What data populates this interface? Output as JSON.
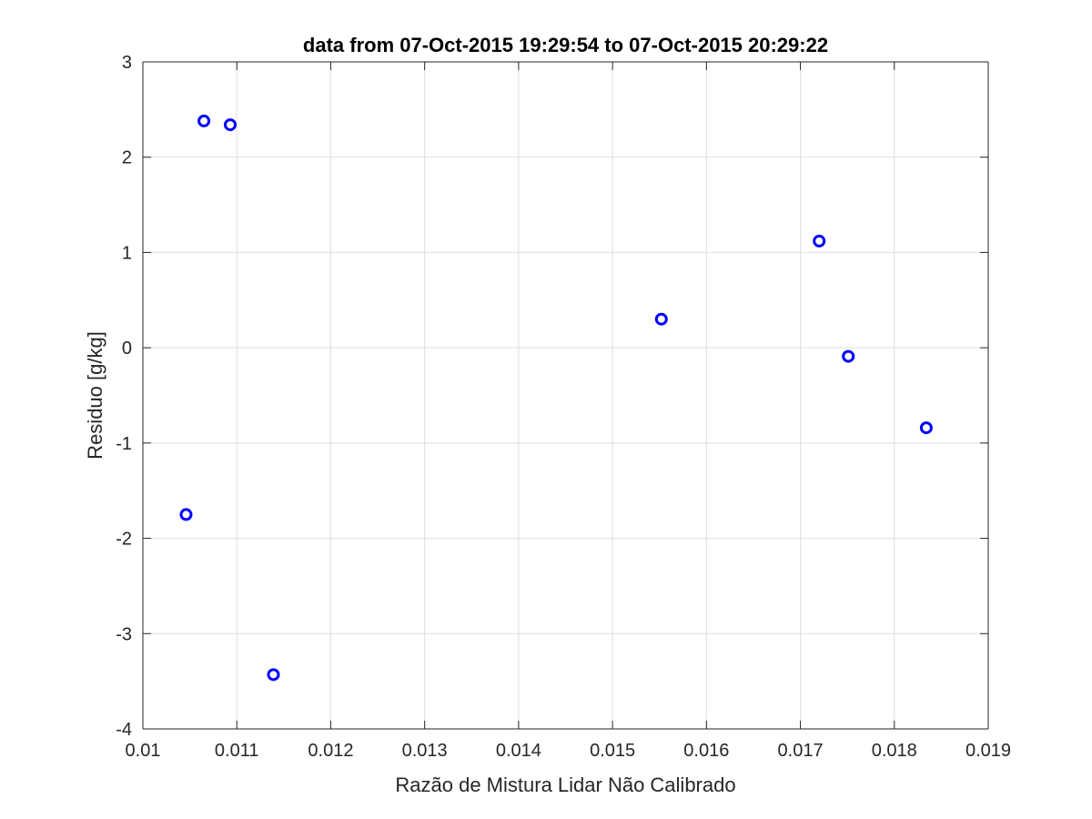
{
  "chart_data": {
    "type": "scatter",
    "title": "data from 07-Oct-2015 19:29:54 to 07-Oct-2015 20:29:22",
    "xlabel": "Razão de Mistura Lidar Não Calibrado",
    "ylabel": "Residuo [g/kg]",
    "xlim": [
      0.01,
      0.019
    ],
    "ylim": [
      -4,
      3
    ],
    "x_ticks": [
      0.01,
      0.011,
      0.012,
      0.013,
      0.014,
      0.015,
      0.016,
      0.017,
      0.018,
      0.019
    ],
    "x_tick_labels": [
      "0.01",
      "0.011",
      "0.012",
      "0.013",
      "0.014",
      "0.015",
      "0.016",
      "0.017",
      "0.018",
      "0.019"
    ],
    "y_ticks": [
      -4,
      -3,
      -2,
      -1,
      0,
      1,
      2,
      3
    ],
    "y_tick_labels": [
      "-4",
      "-3",
      "-2",
      "-1",
      "0",
      "1",
      "2",
      "3"
    ],
    "grid": true,
    "marker": "circle",
    "marker_color": "#0000ff",
    "series": [
      {
        "points": [
          {
            "x": 0.01046,
            "y": -1.75
          },
          {
            "x": 0.01065,
            "y": 2.38
          },
          {
            "x": 0.01093,
            "y": 2.34
          },
          {
            "x": 0.01139,
            "y": -3.43
          },
          {
            "x": 0.01552,
            "y": 0.3
          },
          {
            "x": 0.0172,
            "y": 1.12
          },
          {
            "x": 0.01751,
            "y": -0.09
          },
          {
            "x": 0.01834,
            "y": -0.84
          }
        ]
      }
    ]
  },
  "colors": {
    "axis": "#262626",
    "grid": "#dfdfdf",
    "marker": "#0000ff",
    "background": "#ffffff"
  }
}
